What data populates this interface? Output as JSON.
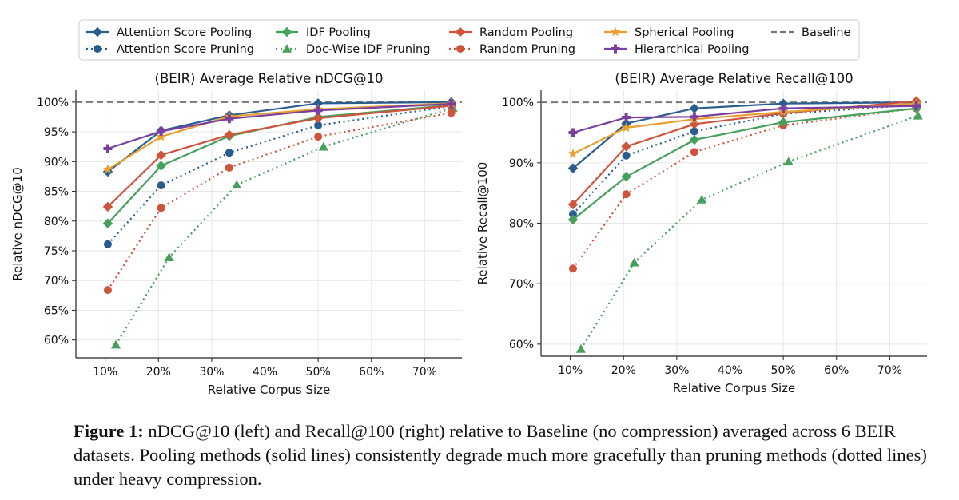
{
  "legend": [
    {
      "label": "Attention Score Pooling",
      "color": "#2a5d8f",
      "marker": "diamond",
      "dash": "solid"
    },
    {
      "label": "Attention Score Pruning",
      "color": "#2a5d8f",
      "marker": "circle",
      "dash": "dotted"
    },
    {
      "label": "IDF Pooling",
      "color": "#45a05c",
      "marker": "diamond",
      "dash": "solid"
    },
    {
      "label": "Doc-Wise IDF Pruning",
      "color": "#45a05c",
      "marker": "triangle",
      "dash": "dotted"
    },
    {
      "label": "Random Pooling",
      "color": "#d0533c",
      "marker": "diamond",
      "dash": "solid"
    },
    {
      "label": "Random Pruning",
      "color": "#d0533c",
      "marker": "circle",
      "dash": "dotted"
    },
    {
      "label": "Spherical Pooling",
      "color": "#e89f2e",
      "marker": "star",
      "dash": "solid"
    },
    {
      "label": "Hierarchical Pooling",
      "color": "#7b3fa0",
      "marker": "plus",
      "dash": "solid"
    },
    {
      "label": "Baseline",
      "color": "#777777",
      "marker": "none",
      "dash": "dashed"
    }
  ],
  "chart_data": [
    {
      "type": "line",
      "title": "(BEIR) Average Relative nDCG@10",
      "xlabel": "Relative Corpus Size",
      "ylabel": "Relative nDCG@10",
      "xlim": [
        4.5,
        77
      ],
      "ylim": [
        57,
        102
      ],
      "xticks": [
        10,
        20,
        30,
        40,
        50,
        60,
        70
      ],
      "xtick_labels": [
        "10%",
        "20%",
        "30%",
        "40%",
        "50%",
        "60%",
        "70%"
      ],
      "yticks": [
        60,
        65,
        70,
        75,
        80,
        85,
        90,
        95,
        100
      ],
      "ytick_labels": [
        "60%",
        "65%",
        "70%",
        "75%",
        "80%",
        "85%",
        "90%",
        "95%",
        "100%"
      ],
      "baseline": 100,
      "series": [
        {
          "name": "Attention Score Pooling",
          "x": [
            10.5,
            20.5,
            33.3,
            50,
            75
          ],
          "y": [
            88.3,
            95.2,
            97.8,
            99.8,
            100
          ]
        },
        {
          "name": "Attention Score Pruning",
          "x": [
            10.5,
            20.5,
            33.3,
            50,
            75
          ],
          "y": [
            76.1,
            86.0,
            91.5,
            96.1,
            99.3
          ]
        },
        {
          "name": "IDF Pooling",
          "x": [
            10.5,
            20.5,
            33.3,
            50,
            75
          ],
          "y": [
            79.6,
            89.3,
            94.3,
            97.5,
            99.5
          ]
        },
        {
          "name": "Doc-Wise IDF Pruning",
          "x": [
            12,
            22,
            34.7,
            51,
            75.3
          ],
          "y": [
            59.2,
            73.9,
            86.1,
            92.5,
            99.0
          ]
        },
        {
          "name": "Random Pooling",
          "x": [
            10.5,
            20.5,
            33.3,
            50,
            75
          ],
          "y": [
            82.4,
            91.1,
            94.5,
            97.3,
            99.4
          ]
        },
        {
          "name": "Random Pruning",
          "x": [
            10.5,
            20.5,
            33.3,
            50,
            75
          ],
          "y": [
            68.4,
            82.2,
            89.0,
            94.2,
            98.2
          ]
        },
        {
          "name": "Spherical Pooling",
          "x": [
            10.5,
            20.5,
            33.3,
            50,
            75
          ],
          "y": [
            88.7,
            94.2,
            97.6,
            98.8,
            99.8
          ]
        },
        {
          "name": "Hierarchical Pooling",
          "x": [
            10.5,
            20.5,
            33.3,
            50,
            75
          ],
          "y": [
            92.2,
            95.1,
            97.2,
            98.6,
            99.7
          ]
        }
      ]
    },
    {
      "type": "line",
      "title": "(BEIR) Average Relative Recall@100",
      "xlabel": "Relative Corpus Size",
      "ylabel": "Relative Recall@100",
      "xlim": [
        4.5,
        77
      ],
      "ylim": [
        58,
        102
      ],
      "xticks": [
        10,
        20,
        30,
        40,
        50,
        60,
        70
      ],
      "xtick_labels": [
        "10%",
        "20%",
        "30%",
        "40%",
        "50%",
        "60%",
        "70%"
      ],
      "yticks": [
        60,
        70,
        80,
        90,
        100
      ],
      "ytick_labels": [
        "60%",
        "70%",
        "80%",
        "90%",
        "100%"
      ],
      "baseline": 100,
      "series": [
        {
          "name": "Attention Score Pooling",
          "x": [
            10.5,
            20.5,
            33.3,
            50,
            75
          ],
          "y": [
            89.1,
            96.5,
            99.0,
            99.8,
            100
          ]
        },
        {
          "name": "Attention Score Pruning",
          "x": [
            10.5,
            20.5,
            33.3,
            50,
            75
          ],
          "y": [
            81.5,
            91.2,
            95.2,
            98.1,
            99.6
          ]
        },
        {
          "name": "IDF Pooling",
          "x": [
            10.5,
            20.5,
            33.3,
            50,
            75
          ],
          "y": [
            80.6,
            87.7,
            93.8,
            96.7,
            99.0
          ]
        },
        {
          "name": "Doc-Wise IDF Pruning",
          "x": [
            12,
            22,
            34.7,
            51,
            75.3
          ],
          "y": [
            59.2,
            73.5,
            83.9,
            90.2,
            97.8
          ]
        },
        {
          "name": "Random Pooling",
          "x": [
            10.5,
            20.5,
            33.3,
            50,
            75
          ],
          "y": [
            83.1,
            92.7,
            96.4,
            98.2,
            100.2
          ]
        },
        {
          "name": "Random Pruning",
          "x": [
            10.5,
            20.5,
            33.3,
            50,
            75
          ],
          "y": [
            72.5,
            84.8,
            91.8,
            96.2,
            99.0
          ]
        },
        {
          "name": "Spherical Pooling",
          "x": [
            10.5,
            20.5,
            33.3,
            50,
            75
          ],
          "y": [
            91.5,
            95.8,
            97.2,
            98.4,
            99.8
          ]
        },
        {
          "name": "Hierarchical Pooling",
          "x": [
            10.5,
            20.5,
            33.3,
            50,
            75
          ],
          "y": [
            95.0,
            97.5,
            97.6,
            99.0,
            99.4
          ]
        }
      ]
    }
  ],
  "caption": {
    "label": "Figure 1:",
    "text": " nDCG@10 (left) and Recall@100 (right) relative to Baseline (no compression) averaged across 6 BEIR datasets. Pooling methods (solid lines) consistently degrade much more gracefully than pruning methods (dotted lines) under heavy compression."
  }
}
